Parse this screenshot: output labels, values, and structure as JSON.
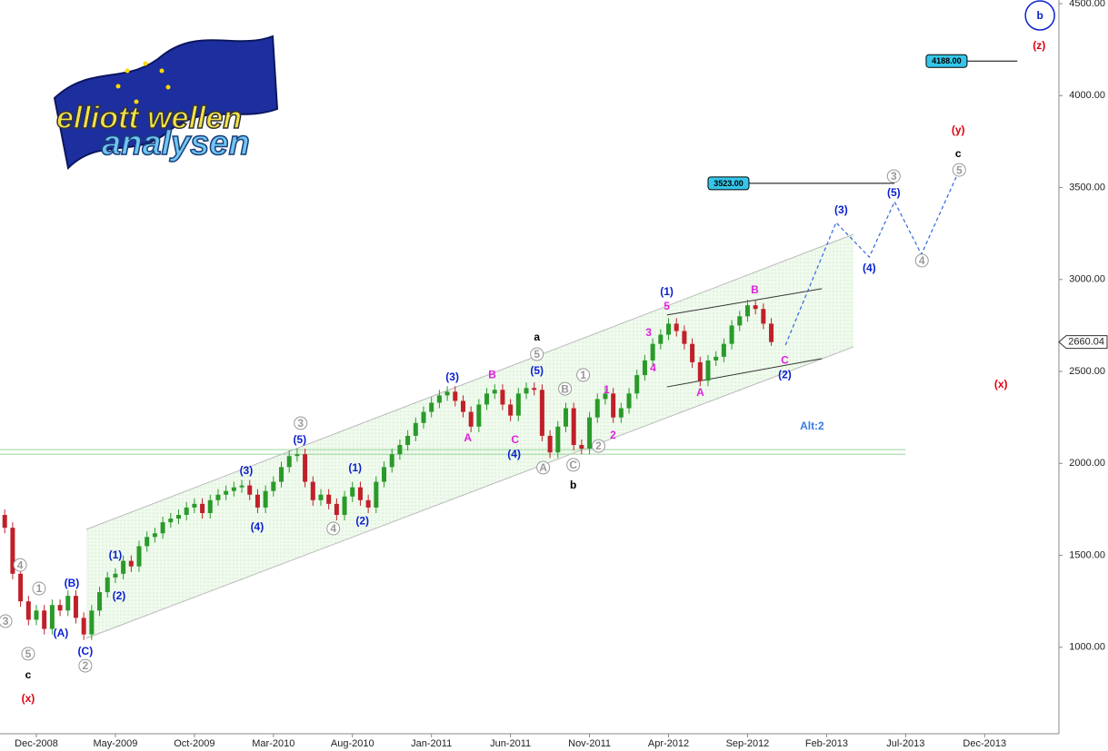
{
  "chart_data": {
    "type": "candlestick",
    "logo": [
      "elliott wellen",
      "analysen"
    ],
    "xlim": [
      -2.3,
      64.7
    ],
    "ylim": [
      530,
      4510
    ],
    "xticks": [
      {
        "value": 0,
        "label": "Dec-2008"
      },
      {
        "value": 5,
        "label": "May-2009"
      },
      {
        "value": 10,
        "label": "Oct-2009"
      },
      {
        "value": 15,
        "label": "Mar-2010"
      },
      {
        "value": 20,
        "label": "Aug-2010"
      },
      {
        "value": 25,
        "label": "Jan-2011"
      },
      {
        "value": 30,
        "label": "Jun-2011"
      },
      {
        "value": 35,
        "label": "Nov-2011"
      },
      {
        "value": 40,
        "label": "Apr-2012"
      },
      {
        "value": 45,
        "label": "Sep-2012"
      },
      {
        "value": 50,
        "label": "Feb-2013"
      },
      {
        "value": 55,
        "label": "Jul-2013"
      },
      {
        "value": 60,
        "label": "Dec-2013"
      }
    ],
    "yticks": [
      {
        "value": 1000,
        "label": "1000.00"
      },
      {
        "value": 1500,
        "label": "1500.00"
      },
      {
        "value": 2000,
        "label": "2000.00"
      },
      {
        "value": 2500,
        "label": "2500.00"
      },
      {
        "value": 3000,
        "label": "3000.00"
      },
      {
        "value": 3500,
        "label": "3500.00"
      },
      {
        "value": 4000,
        "label": "4000.00"
      },
      {
        "value": 4500,
        "label": "4500.00"
      }
    ],
    "up_color": "#2a9a2a",
    "down_color": "#c0202a",
    "x": [
      -2,
      -1.5,
      -1,
      -0.5,
      0,
      0.5,
      1,
      1.5,
      2,
      2.5,
      3,
      3.5,
      4,
      4.5,
      5,
      5.5,
      6,
      6.5,
      7,
      7.5,
      8,
      8.5,
      9,
      9.5,
      10,
      10.5,
      11,
      11.5,
      12,
      12.5,
      13,
      13.5,
      14,
      14.5,
      15,
      15.5,
      16,
      16.5,
      17,
      17.5,
      18,
      18.5,
      19,
      19.5,
      20,
      20.5,
      21,
      21.5,
      22,
      22.5,
      23,
      23.5,
      24,
      24.5,
      25,
      25.5,
      26,
      26.5,
      27,
      27.5,
      28,
      28.5,
      29,
      29.5,
      30,
      30.5,
      31,
      31.5,
      32,
      32.5,
      33,
      33.5,
      34,
      34.5,
      35,
      35.5,
      36,
      36.5,
      37,
      37.5,
      38,
      38.5,
      39,
      39.5,
      40,
      40.5,
      41,
      41.5,
      42,
      42.5,
      43,
      43.5,
      44,
      44.5,
      45,
      45.5,
      46,
      46.5
    ],
    "open": [
      1720,
      1650,
      1400,
      1250,
      1150,
      1200,
      1100,
      1230,
      1200,
      1280,
      1160,
      1070,
      1200,
      1300,
      1380,
      1400,
      1470,
      1440,
      1550,
      1600,
      1620,
      1680,
      1700,
      1720,
      1760,
      1780,
      1730,
      1800,
      1830,
      1850,
      1870,
      1880,
      1830,
      1760,
      1850,
      1900,
      1980,
      2040,
      2050,
      1900,
      1800,
      1830,
      1780,
      1720,
      1820,
      1870,
      1800,
      1760,
      1900,
      1980,
      2050,
      2100,
      2150,
      2220,
      2280,
      2330,
      2370,
      2390,
      2340,
      2280,
      2200,
      2320,
      2380,
      2400,
      2320,
      2260,
      2380,
      2410,
      2400,
      2150,
      2060,
      2200,
      2300,
      2100,
      2080,
      2250,
      2350,
      2380,
      2250,
      2300,
      2380,
      2480,
      2560,
      2650,
      2700,
      2760,
      2720,
      2650,
      2550,
      2450,
      2560,
      2580,
      2650,
      2750,
      2800,
      2860,
      2840,
      2760
    ],
    "high": [
      1750,
      1680,
      1430,
      1280,
      1230,
      1230,
      1260,
      1260,
      1310,
      1310,
      1190,
      1230,
      1330,
      1410,
      1430,
      1500,
      1500,
      1580,
      1630,
      1650,
      1710,
      1730,
      1750,
      1790,
      1810,
      1810,
      1830,
      1860,
      1880,
      1900,
      1910,
      1910,
      1860,
      1880,
      1930,
      2010,
      2070,
      2080,
      2080,
      1930,
      1860,
      1860,
      1810,
      1850,
      1900,
      1900,
      1830,
      1930,
      2010,
      2080,
      2130,
      2180,
      2250,
      2310,
      2360,
      2400,
      2420,
      2420,
      2370,
      2310,
      2350,
      2410,
      2430,
      2430,
      2350,
      2410,
      2440,
      2440,
      2430,
      2180,
      2230,
      2330,
      2330,
      2130,
      2280,
      2380,
      2410,
      2410,
      2330,
      2410,
      2510,
      2590,
      2680,
      2730,
      2790,
      2790,
      2750,
      2680,
      2580,
      2590,
      2610,
      2680,
      2780,
      2830,
      2890,
      2890,
      2870,
      2790
    ],
    "low": [
      1620,
      1370,
      1220,
      1120,
      1120,
      1070,
      1070,
      1170,
      1170,
      1130,
      1040,
      1040,
      1170,
      1270,
      1350,
      1370,
      1410,
      1410,
      1520,
      1570,
      1590,
      1650,
      1670,
      1690,
      1730,
      1700,
      1700,
      1770,
      1800,
      1820,
      1840,
      1800,
      1730,
      1730,
      1820,
      1870,
      1950,
      2010,
      1870,
      1770,
      1770,
      1750,
      1690,
      1690,
      1790,
      1770,
      1730,
      1730,
      1870,
      1950,
      2020,
      2070,
      2120,
      2190,
      2250,
      2300,
      2340,
      2310,
      2250,
      2170,
      2170,
      2290,
      2350,
      2290,
      2230,
      2230,
      2350,
      2370,
      2120,
      2030,
      2030,
      2170,
      2070,
      2050,
      2050,
      2220,
      2320,
      2220,
      2220,
      2270,
      2350,
      2450,
      2530,
      2620,
      2670,
      2690,
      2620,
      2520,
      2420,
      2420,
      2530,
      2550,
      2620,
      2720,
      2770,
      2810,
      2730,
      2640
    ],
    "close": [
      1650,
      1400,
      1250,
      1150,
      1200,
      1100,
      1230,
      1200,
      1280,
      1160,
      1070,
      1200,
      1300,
      1380,
      1400,
      1470,
      1440,
      1550,
      1600,
      1620,
      1680,
      1700,
      1720,
      1760,
      1780,
      1730,
      1800,
      1830,
      1850,
      1870,
      1880,
      1830,
      1760,
      1850,
      1900,
      1980,
      2040,
      2050,
      1900,
      1800,
      1830,
      1780,
      1720,
      1820,
      1870,
      1800,
      1760,
      1900,
      1980,
      2050,
      2100,
      2150,
      2220,
      2280,
      2330,
      2370,
      2390,
      2340,
      2280,
      2200,
      2320,
      2380,
      2400,
      2320,
      2260,
      2380,
      2410,
      2400,
      2150,
      2060,
      2200,
      2300,
      2100,
      2080,
      2250,
      2350,
      2380,
      2250,
      2300,
      2380,
      2480,
      2560,
      2650,
      2700,
      2760,
      2720,
      2650,
      2550,
      2450,
      2560,
      2580,
      2650,
      2750,
      2800,
      2860,
      2840,
      2760,
      2660.04
    ],
    "last_price": {
      "value": 2660.04,
      "label": "2660.04"
    },
    "channel": {
      "color": "#bbbbbb",
      "fill": "#e6f6e2",
      "upper": {
        "x": [
          3.16,
          51.7
        ],
        "y": [
          1641,
          3246
        ]
      },
      "lower": {
        "x": [
          3.16,
          51.7
        ],
        "y": [
          1049,
          2634
        ]
      }
    },
    "support_lines": {
      "color": "#9ad49a",
      "x": [
        -2.3,
        55
      ],
      "values": [
        2075,
        2050
      ]
    },
    "wedge": [
      {
        "x": [
          39.9,
          49.7
        ],
        "y": [
          2807,
          2950
        ]
      },
      {
        "x": [
          39.9,
          49.7
        ],
        "y": [
          2416,
          2570
        ]
      }
    ],
    "projection": {
      "color": "#3366dd",
      "x": [
        47.4,
        50.6,
        52.7,
        54.3,
        56.0,
        58.2
      ],
      "y": [
        2644,
        3310,
        3122,
        3423,
        3137,
        3557
      ]
    },
    "targets": [
      {
        "value": 4188,
        "label": "4188.00",
        "x": [
          56.3,
          62.07
        ]
      },
      {
        "value": 3523,
        "label": "3523.00",
        "x": [
          42.5,
          54.3
        ]
      }
    ],
    "annotations": [
      {
        "text": "3",
        "x": -1.95,
        "y": 1142,
        "style": "circled"
      },
      {
        "text": "4",
        "x": -1.03,
        "y": 1448,
        "style": "circled"
      },
      {
        "text": "1",
        "x": 0.17,
        "y": 1320,
        "style": "circled"
      },
      {
        "text": "5",
        "x": -0.52,
        "y": 965,
        "style": "circled"
      },
      {
        "text": "2",
        "x": 3.1,
        "y": 900,
        "style": "circled"
      },
      {
        "text": "3",
        "x": 16.72,
        "y": 2219,
        "style": "circled"
      },
      {
        "text": "4",
        "x": 18.79,
        "y": 1646,
        "style": "circled"
      },
      {
        "text": "5",
        "x": 31.67,
        "y": 2594,
        "style": "circled"
      },
      {
        "text": "1",
        "x": 34.6,
        "y": 2481,
        "style": "circled"
      },
      {
        "text": "B",
        "x": 33.45,
        "y": 2406,
        "style": "circled"
      },
      {
        "text": "A",
        "x": 32.07,
        "y": 1977,
        "style": "circled"
      },
      {
        "text": "C",
        "x": 33.97,
        "y": 1992,
        "style": "circled"
      },
      {
        "text": "2",
        "x": 35.57,
        "y": 2095,
        "style": "circled"
      },
      {
        "text": "3",
        "x": 54.25,
        "y": 3562,
        "style": "circled"
      },
      {
        "text": "5",
        "x": 58.39,
        "y": 3596,
        "style": "circled"
      },
      {
        "text": "4",
        "x": 56.03,
        "y": 3103,
        "style": "circled"
      },
      {
        "text": "(B)",
        "x": 2.24,
        "y": 1350,
        "style": "blue"
      },
      {
        "text": "(A)",
        "x": 1.55,
        "y": 1078,
        "style": "blue"
      },
      {
        "text": "(C)",
        "x": 3.1,
        "y": 979,
        "style": "blue"
      },
      {
        "text": "(1)",
        "x": 5.0,
        "y": 1503,
        "style": "blue"
      },
      {
        "text": "(2)",
        "x": 5.23,
        "y": 1281,
        "style": "blue"
      },
      {
        "text": "(3)",
        "x": 13.28,
        "y": 1962,
        "style": "blue"
      },
      {
        "text": "(4)",
        "x": 13.97,
        "y": 1656,
        "style": "blue"
      },
      {
        "text": "(5)",
        "x": 16.67,
        "y": 2130,
        "style": "blue"
      },
      {
        "text": "(1)",
        "x": 20.17,
        "y": 1977,
        "style": "blue"
      },
      {
        "text": "(2)",
        "x": 20.63,
        "y": 1690,
        "style": "blue"
      },
      {
        "text": "(3)",
        "x": 26.32,
        "y": 2471,
        "style": "blue"
      },
      {
        "text": "(5)",
        "x": 31.67,
        "y": 2505,
        "style": "blue"
      },
      {
        "text": "(4)",
        "x": 30.23,
        "y": 2051,
        "style": "blue"
      },
      {
        "text": "(1)",
        "x": 39.89,
        "y": 2935,
        "style": "blue"
      },
      {
        "text": "(2)",
        "x": 47.36,
        "y": 2485,
        "style": "blue"
      },
      {
        "text": "(3)",
        "x": 50.92,
        "y": 3379,
        "style": "blue"
      },
      {
        "text": "(4)",
        "x": 52.7,
        "y": 3063,
        "style": "blue"
      },
      {
        "text": "(5)",
        "x": 54.25,
        "y": 3473,
        "style": "blue"
      },
      {
        "text": "Alt:2",
        "x": 49.08,
        "y": 2204,
        "style": "alt"
      },
      {
        "text": "A",
        "x": 27.3,
        "y": 2140,
        "style": "magenta"
      },
      {
        "text": "B",
        "x": 28.85,
        "y": 2485,
        "style": "magenta"
      },
      {
        "text": "C",
        "x": 30.29,
        "y": 2130,
        "style": "magenta"
      },
      {
        "text": "1",
        "x": 36.09,
        "y": 2402,
        "style": "magenta"
      },
      {
        "text": "2",
        "x": 36.49,
        "y": 2155,
        "style": "magenta"
      },
      {
        "text": "3",
        "x": 38.74,
        "y": 2713,
        "style": "magenta"
      },
      {
        "text": "4",
        "x": 39.02,
        "y": 2520,
        "style": "magenta"
      },
      {
        "text": "5",
        "x": 39.89,
        "y": 2856,
        "style": "magenta"
      },
      {
        "text": "A",
        "x": 42.01,
        "y": 2387,
        "style": "magenta"
      },
      {
        "text": "B",
        "x": 45.46,
        "y": 2945,
        "style": "magenta"
      },
      {
        "text": "C",
        "x": 47.36,
        "y": 2564,
        "style": "magenta"
      },
      {
        "text": "a",
        "x": 31.67,
        "y": 2688,
        "style": "black"
      },
      {
        "text": "b",
        "x": 33.97,
        "y": 1883,
        "style": "black"
      },
      {
        "text": "c",
        "x": -0.52,
        "y": 851,
        "style": "black"
      },
      {
        "text": "c",
        "x": 58.33,
        "y": 3685,
        "style": "black"
      },
      {
        "text": "(x)",
        "x": -0.52,
        "y": 723,
        "style": "red"
      },
      {
        "text": "(x)",
        "x": 61.03,
        "y": 2431,
        "style": "red"
      },
      {
        "text": "(y)",
        "x": 58.33,
        "y": 3814,
        "style": "red"
      },
      {
        "text": "(z)",
        "x": 63.45,
        "y": 4273,
        "style": "red"
      },
      {
        "text": "b",
        "x": 63.5,
        "y": 4436,
        "style": "big-circle"
      }
    ]
  }
}
